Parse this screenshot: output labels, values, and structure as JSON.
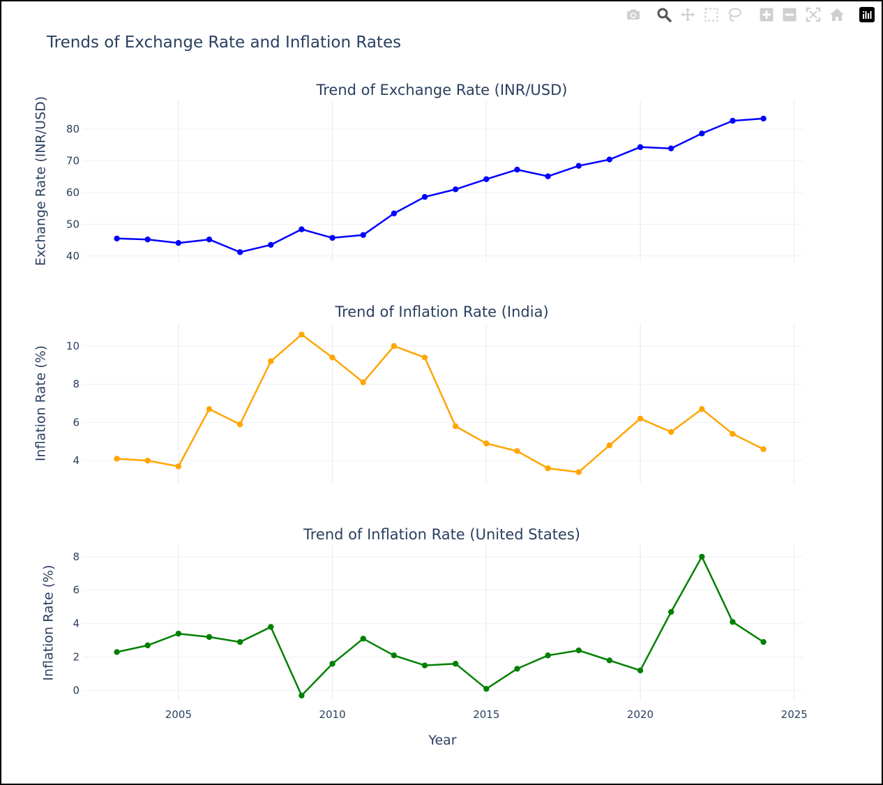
{
  "title": "Trends of Exchange Rate and Inflation Rates",
  "modebar": {
    "icons": [
      "camera-icon",
      "zoom-icon",
      "pan-icon",
      "box-select-icon",
      "lasso-select-icon",
      "zoom-in-icon",
      "zoom-out-icon",
      "autoscale-icon",
      "reset-axes-icon",
      "plotly-logo-icon"
    ]
  },
  "colors": {
    "exchange": "#0000ff",
    "india": "#ffa500",
    "us": "#008000",
    "grid": "#ebf0f8",
    "text": "#2a3f5f"
  },
  "chart_data": [
    {
      "type": "line",
      "title": "Trend of Exchange Rate (INR/USD)",
      "xlabel": "",
      "ylabel": "Exchange Rate (INR/USD)",
      "x": [
        2003,
        2004,
        2005,
        2006,
        2007,
        2008,
        2009,
        2010,
        2011,
        2012,
        2013,
        2014,
        2015,
        2016,
        2017,
        2018,
        2019,
        2020,
        2021,
        2022,
        2023,
        2024
      ],
      "series": [
        {
          "values": [
            45.5,
            45.2,
            44.1,
            45.2,
            41.2,
            43.5,
            48.4,
            45.7,
            46.6,
            53.4,
            58.6,
            61.0,
            64.2,
            67.2,
            65.1,
            68.4,
            70.4,
            74.3,
            73.9,
            78.6,
            82.6,
            83.3
          ],
          "color": "#0000ff"
        }
      ],
      "xlim": [
        2001.9,
        2025.3
      ],
      "ylim": [
        38.2,
        89.0
      ],
      "yticks": [
        "40",
        "50",
        "60",
        "70",
        "80"
      ],
      "grid": true
    },
    {
      "type": "line",
      "title": "Trend of Inflation Rate (India)",
      "xlabel": "",
      "ylabel": "Inflation Rate (%)",
      "x": [
        2003,
        2004,
        2005,
        2006,
        2007,
        2008,
        2009,
        2010,
        2011,
        2012,
        2013,
        2014,
        2015,
        2016,
        2017,
        2018,
        2019,
        2020,
        2021,
        2022,
        2023,
        2024
      ],
      "series": [
        {
          "values": [
            4.1,
            4.0,
            3.7,
            6.7,
            5.9,
            9.2,
            10.6,
            9.4,
            8.1,
            10.0,
            9.4,
            5.8,
            4.9,
            4.5,
            3.6,
            3.4,
            4.8,
            6.2,
            5.5,
            6.7,
            5.4,
            4.6
          ],
          "color": "#ffa500"
        }
      ],
      "xlim": [
        2001.9,
        2025.3
      ],
      "ylim": [
        2.8,
        11.2
      ],
      "yticks": [
        "4",
        "6",
        "8",
        "10"
      ],
      "grid": true
    },
    {
      "type": "line",
      "title": "Trend of Inflation Rate (United States)",
      "xlabel": "Year",
      "ylabel": "Inflation Rate (%)",
      "x": [
        2003,
        2004,
        2005,
        2006,
        2007,
        2008,
        2009,
        2010,
        2011,
        2012,
        2013,
        2014,
        2015,
        2016,
        2017,
        2018,
        2019,
        2020,
        2021,
        2022,
        2023,
        2024
      ],
      "series": [
        {
          "values": [
            2.3,
            2.7,
            3.4,
            3.2,
            2.9,
            3.8,
            -0.3,
            1.6,
            3.1,
            2.1,
            1.5,
            1.6,
            0.1,
            1.3,
            2.1,
            2.4,
            1.8,
            1.2,
            4.7,
            8.0,
            4.1,
            2.9
          ],
          "color": "#008000"
        }
      ],
      "xlim": [
        2001.9,
        2025.3
      ],
      "ylim": [
        -0.6,
        8.7
      ],
      "yticks": [
        "0",
        "2",
        "4",
        "6",
        "8"
      ],
      "xticks": [
        "2005",
        "2010",
        "2015",
        "2020",
        "2025"
      ],
      "grid": true
    }
  ]
}
